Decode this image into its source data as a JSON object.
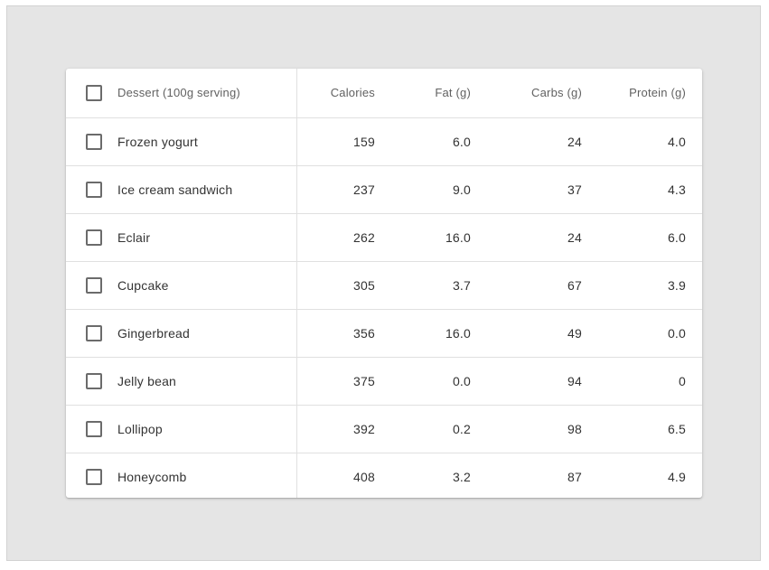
{
  "table": {
    "headers": {
      "name": "Dessert (100g serving)",
      "calories": "Calories",
      "fat": "Fat (g)",
      "carbs": "Carbs (g)",
      "protein": "Protein (g)"
    },
    "rows": [
      {
        "name": "Frozen yogurt",
        "calories": "159",
        "fat": "6.0",
        "carbs": "24",
        "protein": "4.0"
      },
      {
        "name": "Ice cream sandwich",
        "calories": "237",
        "fat": "9.0",
        "carbs": "37",
        "protein": "4.3"
      },
      {
        "name": "Eclair",
        "calories": "262",
        "fat": "16.0",
        "carbs": "24",
        "protein": "6.0"
      },
      {
        "name": "Cupcake",
        "calories": "305",
        "fat": "3.7",
        "carbs": "67",
        "protein": "3.9"
      },
      {
        "name": "Gingerbread",
        "calories": "356",
        "fat": "16.0",
        "carbs": "49",
        "protein": "0.0"
      },
      {
        "name": "Jelly bean",
        "calories": "375",
        "fat": "0.0",
        "carbs": "94",
        "protein": "0"
      },
      {
        "name": "Lollipop",
        "calories": "392",
        "fat": "0.2",
        "carbs": "98",
        "protein": "6.5"
      },
      {
        "name": "Honeycomb",
        "calories": "408",
        "fat": "3.2",
        "carbs": "87",
        "protein": "4.9"
      }
    ]
  }
}
